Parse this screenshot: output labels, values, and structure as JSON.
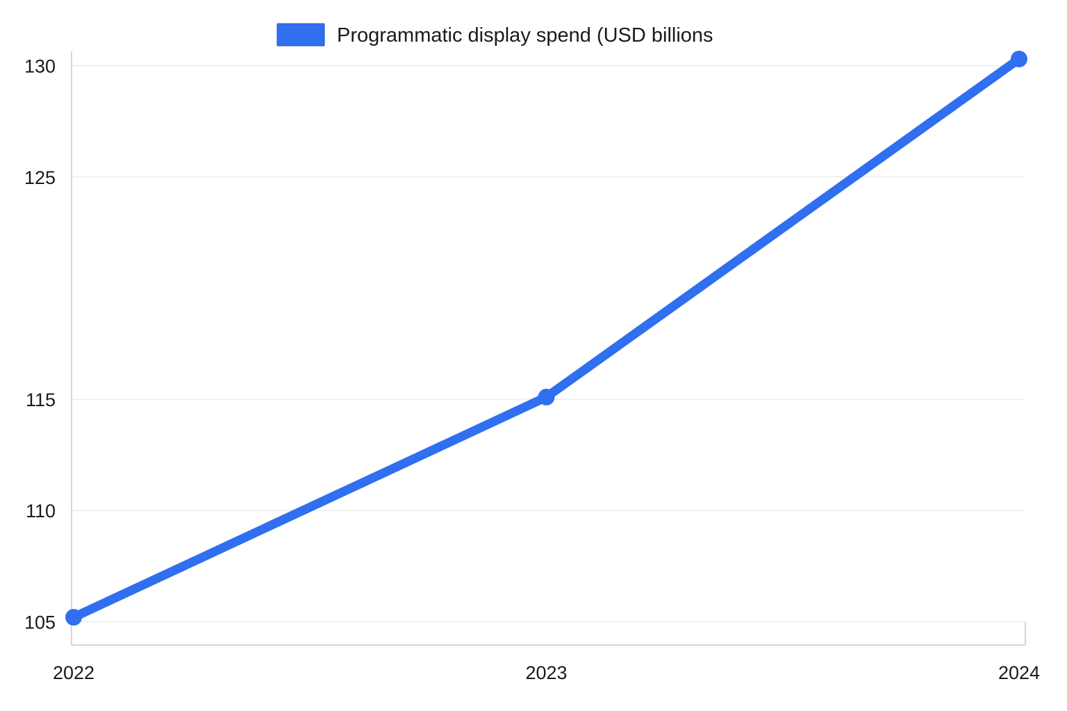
{
  "chart_data": {
    "type": "line",
    "x": [
      "2022",
      "2023",
      "2024"
    ],
    "series": [
      {
        "name": "Programmatic display spend (USD billions",
        "values": [
          105.2,
          115.1,
          130.3
        ],
        "color": "#2f6ff0"
      }
    ],
    "yticks": [
      105,
      110,
      115,
      125,
      130
    ],
    "ylim": [
      104.2,
      130.7
    ],
    "grid": true,
    "legend_position": "top-center",
    "title": "",
    "xlabel": "",
    "ylabel": ""
  }
}
